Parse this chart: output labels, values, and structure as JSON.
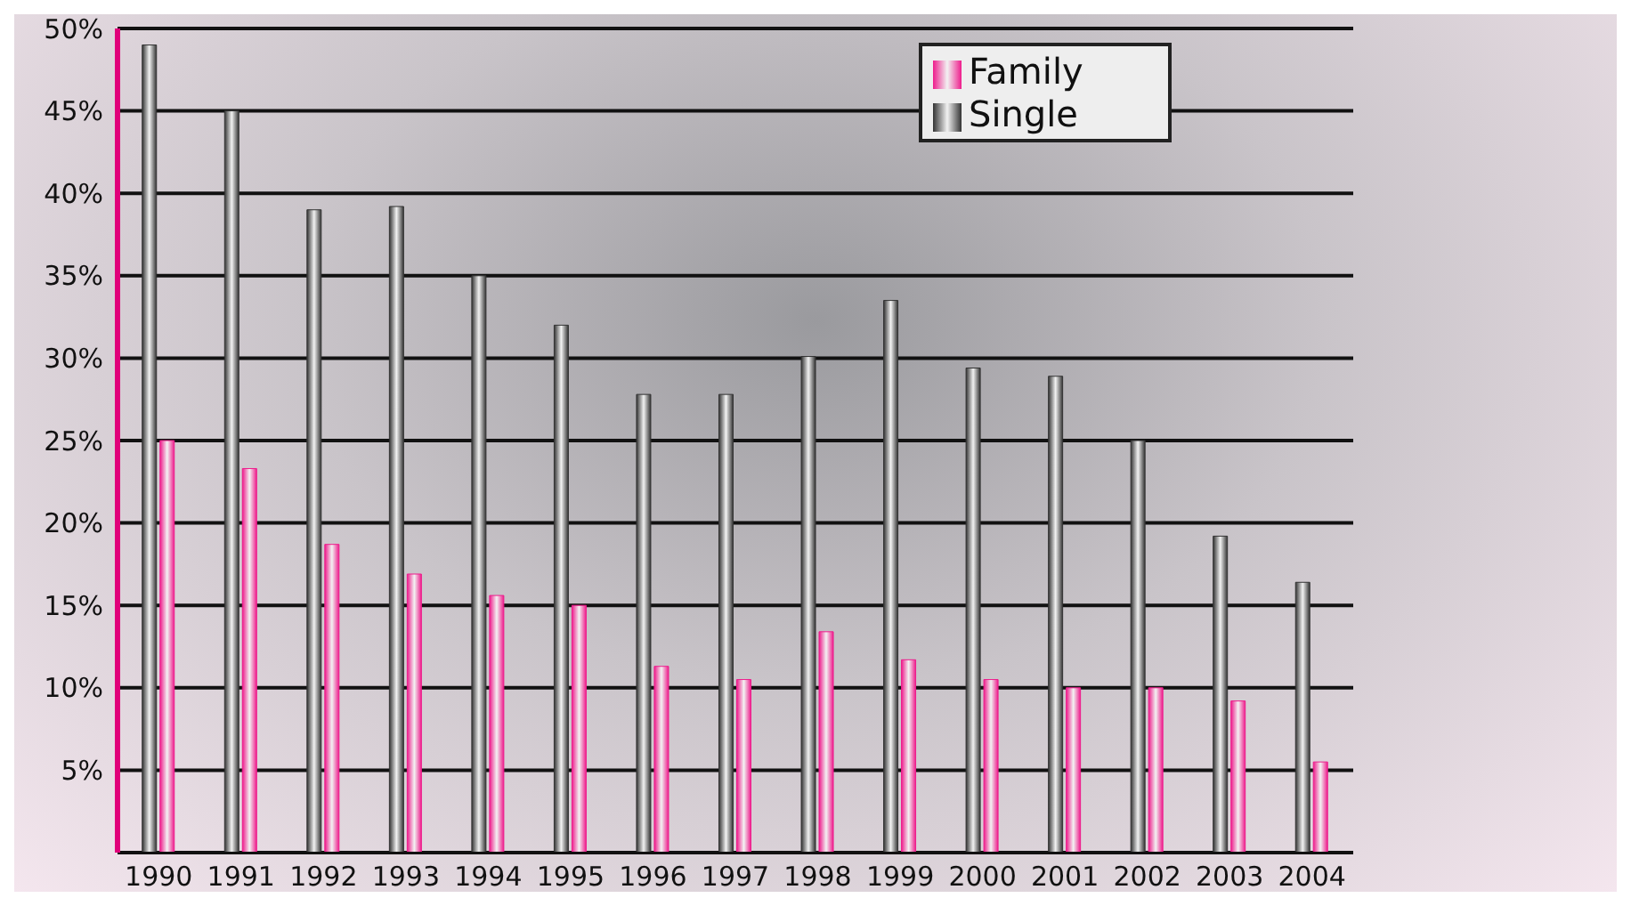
{
  "chart_data": {
    "type": "bar",
    "categories": [
      "1990",
      "1991",
      "1992",
      "1993",
      "1994",
      "1995",
      "1996",
      "1997",
      "1998",
      "1999",
      "2000",
      "2001",
      "2002",
      "2003",
      "2004"
    ],
    "series": [
      {
        "name": "Single",
        "color": "#333333",
        "values": [
          49,
          45,
          39,
          39.2,
          35,
          32,
          27.8,
          27.8,
          30.1,
          33.5,
          29.4,
          28.9,
          25,
          19.2,
          16.4
        ]
      },
      {
        "name": "Family",
        "color": "#ee1c8c",
        "values": [
          25,
          23.3,
          18.7,
          16.9,
          15.6,
          15,
          11.3,
          10.5,
          13.4,
          11.7,
          10.5,
          10,
          10,
          9.2,
          5.5
        ]
      }
    ],
    "ylim": [
      0,
      50
    ],
    "yticks": [
      {
        "value": 5,
        "label": "5%"
      },
      {
        "value": 10,
        "label": "10%"
      },
      {
        "value": 15,
        "label": "15%"
      },
      {
        "value": 20,
        "label": "20%"
      },
      {
        "value": 25,
        "label": "25%"
      },
      {
        "value": 30,
        "label": "30%"
      },
      {
        "value": 35,
        "label": "35%"
      },
      {
        "value": 40,
        "label": "40%"
      },
      {
        "value": 45,
        "label": "45%"
      },
      {
        "value": 50,
        "label": "50%"
      }
    ],
    "grid": "y",
    "legend": "top right"
  }
}
